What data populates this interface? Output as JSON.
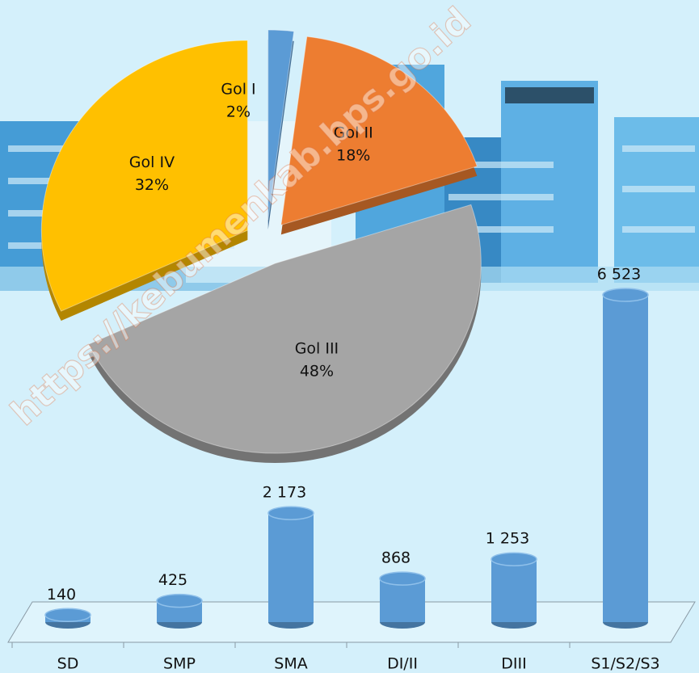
{
  "watermark": "https://kebumenkab.bps.go.id",
  "chart_data": [
    {
      "type": "pie",
      "categories": [
        "Gol I",
        "Gol II",
        "Gol III",
        "Gol IV"
      ],
      "values": [
        2,
        18,
        48,
        32
      ],
      "value_labels": [
        "2%",
        "18%",
        "48%",
        "32%"
      ],
      "colors": [
        "#5b9bd5",
        "#ed7d31",
        "#a5a5a5",
        "#ffc000"
      ]
    },
    {
      "type": "bar",
      "categories": [
        "SD",
        "SMP",
        "SMA",
        "DI/II",
        "DIII",
        "S1/S2/S3"
      ],
      "values": [
        140,
        425,
        2173,
        868,
        1253,
        6523
      ],
      "value_labels": [
        "140",
        "425",
        "2 173",
        "868",
        "1 253",
        "6 523"
      ],
      "color": "#5b9bd5"
    }
  ]
}
